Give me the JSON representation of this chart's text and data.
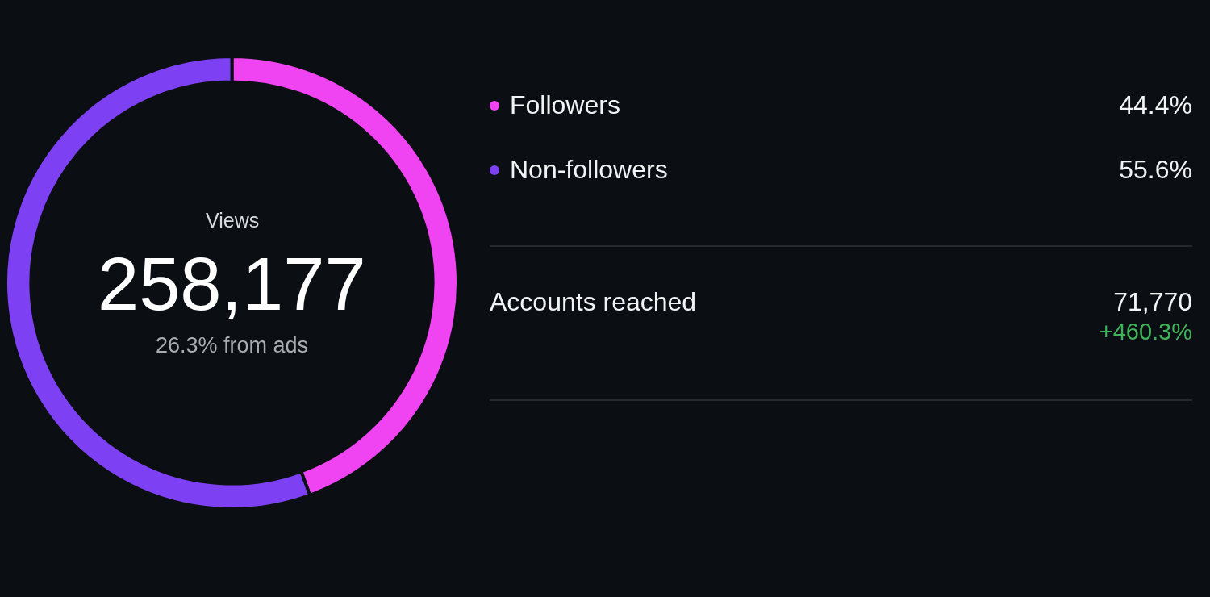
{
  "chart_data": [
    {
      "type": "donut",
      "categories": [
        "Followers",
        "Non-followers"
      ],
      "values": [
        44.4,
        55.6
      ],
      "colors": [
        "#f043f2",
        "#7d40f3"
      ],
      "value_labels": [
        "44.4%",
        "55.6%"
      ],
      "legend": "right",
      "annotations": [
        "Views",
        "258,177",
        "26.3% from ads"
      ]
    },
    {
      "type": "other",
      "annotations": [
        "Accounts reached",
        "71,770",
        "+460.3%"
      ]
    }
  ]
}
